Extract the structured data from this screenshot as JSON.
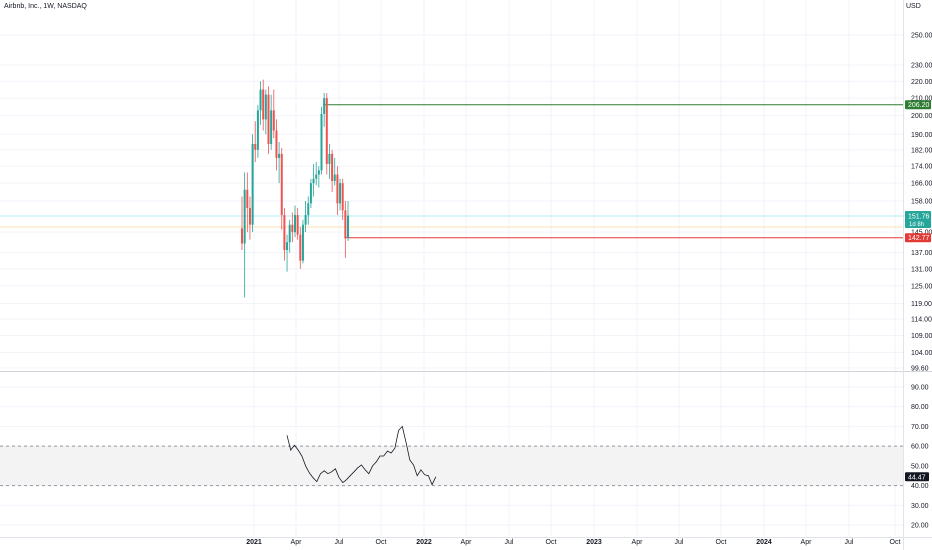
{
  "header": {
    "symbol_title": "Airbnb, Inc., 1W, NASDAQ",
    "currency_label": "USD"
  },
  "colors": {
    "up": "#26a69a",
    "down": "#ef5350",
    "grid": "#f0f3fa",
    "axis_text": "#131722",
    "rsi_line": "#131722",
    "rsi_band": "#f3f3f3",
    "hline_green": "#2e7d32",
    "hline_red": "#e53935",
    "last_price_tag": "#26a69a",
    "cyan_line": "#b2ebf2",
    "orange_line": "#ffe0b2"
  },
  "chart_data": [
    {
      "type": "candlestick",
      "title": "Airbnb, Inc., 1W, NASDAQ",
      "y_scale": "log",
      "ylim": [
        99.6,
        275
      ],
      "x_ticks": [
        "2021",
        "Apr",
        "Jul",
        "Oct",
        "2022",
        "Apr",
        "Jul",
        "Oct",
        "2023",
        "Apr",
        "Jul",
        "Oct",
        "2024",
        "Apr",
        "Jul",
        "Oct"
      ],
      "y_ticks": [
        "250.00",
        "230.00",
        "220.00",
        "210.00",
        "200.00",
        "190.00",
        "182.00",
        "174.00",
        "166.00",
        "158.00",
        "151.76",
        "145.00",
        "137.00",
        "131.00",
        "125.00",
        "119.00",
        "114.00",
        "109.00",
        "104.00",
        "99.60"
      ],
      "y_tick_values": [
        250,
        230,
        220,
        210,
        200,
        190,
        182,
        174,
        166,
        158,
        151.76,
        145,
        137,
        131,
        125,
        119,
        114,
        109,
        104,
        99.6
      ],
      "price_labels": [
        {
          "value": 206.2,
          "text": "206.20",
          "color": "#2e7d32"
        },
        {
          "value": 151.76,
          "text": "151.76",
          "subtext": "1d 8h",
          "color": "#26a69a"
        },
        {
          "value": 142.77,
          "text": "142.77",
          "color": "#e53935"
        }
      ],
      "candles": [
        [
          146.5,
          160.0,
          138.0,
          140.5
        ],
        [
          140.5,
          171.0,
          121.0,
          163.0
        ],
        [
          163.0,
          171.0,
          145.0,
          155.0
        ],
        [
          155.0,
          160.0,
          142.0,
          148.0
        ],
        [
          148.0,
          190.0,
          145.0,
          185.0
        ],
        [
          185.0,
          197.0,
          176.0,
          182.0
        ],
        [
          182.0,
          206.0,
          178.0,
          203.0
        ],
        [
          203.0,
          220.0,
          195.0,
          215.0
        ],
        [
          215.0,
          221.0,
          192.0,
          198.0
        ],
        [
          198.0,
          215.0,
          190.0,
          212.0
        ],
        [
          212.0,
          217.0,
          180.0,
          185.0
        ],
        [
          185.0,
          212.0,
          182.0,
          203.0
        ],
        [
          203.0,
          215.0,
          188.0,
          192.0
        ],
        [
          192.0,
          198.0,
          172.0,
          178.0
        ],
        [
          178.0,
          186.0,
          166.0,
          180.0
        ],
        [
          180.0,
          183.0,
          146.0,
          152.0
        ],
        [
          152.0,
          155.0,
          134.0,
          138.0
        ],
        [
          138.0,
          144.0,
          130.0,
          141.0
        ],
        [
          141.0,
          150.0,
          137.0,
          148.0
        ],
        [
          148.0,
          153.0,
          141.0,
          145.0
        ],
        [
          145.0,
          156.0,
          143.0,
          152.0
        ],
        [
          152.0,
          155.0,
          142.0,
          144.0
        ],
        [
          144.0,
          147.0,
          131.0,
          134.0
        ],
        [
          134.0,
          150.0,
          133.0,
          148.0
        ],
        [
          148.0,
          158.0,
          145.0,
          152.0
        ],
        [
          152.0,
          160.0,
          148.0,
          157.0
        ],
        [
          157.0,
          168.0,
          155.0,
          166.0
        ],
        [
          166.0,
          175.0,
          160.0,
          168.0
        ],
        [
          168.0,
          176.0,
          165.0,
          170.0
        ],
        [
          170.0,
          174.0,
          164.0,
          172.0
        ],
        [
          172.0,
          205.0,
          170.0,
          201.0
        ],
        [
          201.0,
          213.0,
          194.0,
          210.0
        ],
        [
          210.0,
          213.0,
          170.0,
          175.0
        ],
        [
          175.0,
          185.0,
          168.0,
          180.0
        ],
        [
          180.0,
          182.0,
          162.0,
          167.0
        ],
        [
          167.0,
          178.0,
          165.0,
          170.0
        ],
        [
          170.0,
          174.0,
          152.0,
          157.0
        ],
        [
          157.0,
          168.0,
          154.0,
          166.0
        ],
        [
          166.0,
          168.0,
          150.0,
          154.0
        ],
        [
          154.0,
          158.0,
          135.0,
          142.77
        ],
        [
          142.77,
          158.0,
          141.5,
          151.76
        ]
      ]
    },
    {
      "type": "line",
      "title": "RSI",
      "ylim": [
        15,
        95
      ],
      "y_ticks": [
        "90.00",
        "80.00",
        "70.00",
        "60.00",
        "50.00",
        "40.00",
        "30.00",
        "20.00"
      ],
      "y_tick_values": [
        90,
        80,
        70,
        60,
        50,
        40,
        30,
        20
      ],
      "band": [
        40,
        60
      ],
      "current_label": {
        "value": 44.47,
        "text": "44.47"
      },
      "values": [
        65.5,
        58.0,
        60.5,
        58.0,
        55.0,
        50.0,
        46.5,
        44.0,
        42.0,
        46.0,
        47.5,
        46.0,
        47.0,
        48.5,
        44.0,
        41.5,
        43.0,
        45.0,
        47.0,
        49.0,
        50.5,
        48.0,
        46.0,
        50.0,
        52.0,
        55.0,
        55.0,
        57.5,
        56.5,
        59.0,
        68.0,
        70.0,
        62.0,
        53.0,
        50.5,
        45.0,
        48.0,
        45.5,
        45.0,
        40.5,
        44.47
      ]
    }
  ]
}
